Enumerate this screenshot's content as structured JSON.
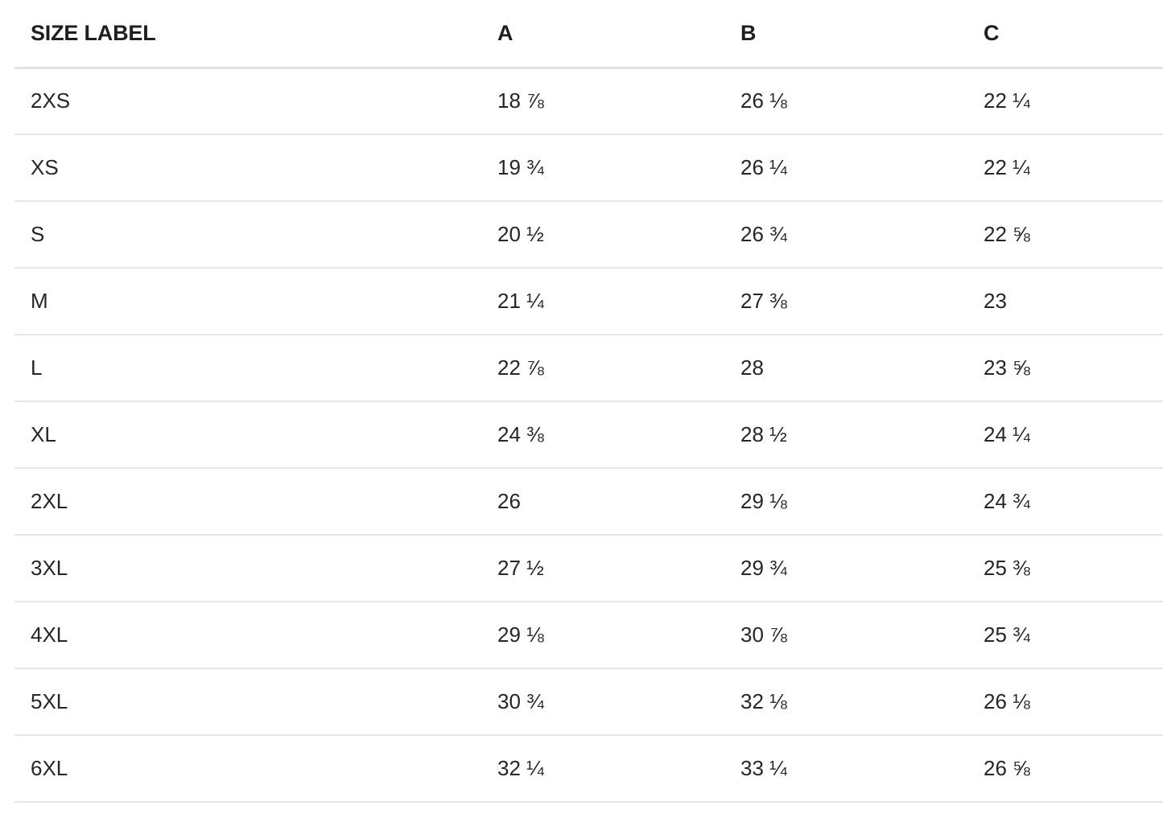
{
  "table": {
    "headers": [
      "SIZE LABEL",
      "A",
      "B",
      "C"
    ],
    "rows": [
      [
        "2XS",
        "18 ⅞",
        "26 ⅛",
        "22 ¼"
      ],
      [
        "XS",
        "19 ¾",
        "26 ¼",
        "22 ¼"
      ],
      [
        "S",
        "20 ½",
        "26 ¾",
        "22 ⅝"
      ],
      [
        "M",
        "21 ¼",
        "27 ⅜",
        "23"
      ],
      [
        "L",
        "22 ⅞",
        "28",
        "23 ⅝"
      ],
      [
        "XL",
        "24 ⅜",
        "28 ½",
        "24 ¼"
      ],
      [
        "2XL",
        "26",
        "29 ⅛",
        "24 ¾"
      ],
      [
        "3XL",
        "27 ½",
        "29 ¾",
        "25 ⅜"
      ],
      [
        "4XL",
        "29 ⅛",
        "30 ⅞",
        "25 ¾"
      ],
      [
        "5XL",
        "30 ¾",
        "32 ⅛",
        "26 ⅛"
      ],
      [
        "6XL",
        "32 ¼",
        "33 ¼",
        "26 ⅝"
      ]
    ]
  },
  "colors": {
    "text": "#222222",
    "header_rule": "#e2e2e2",
    "row_rule": "#e6e6e6",
    "background": "#ffffff"
  }
}
